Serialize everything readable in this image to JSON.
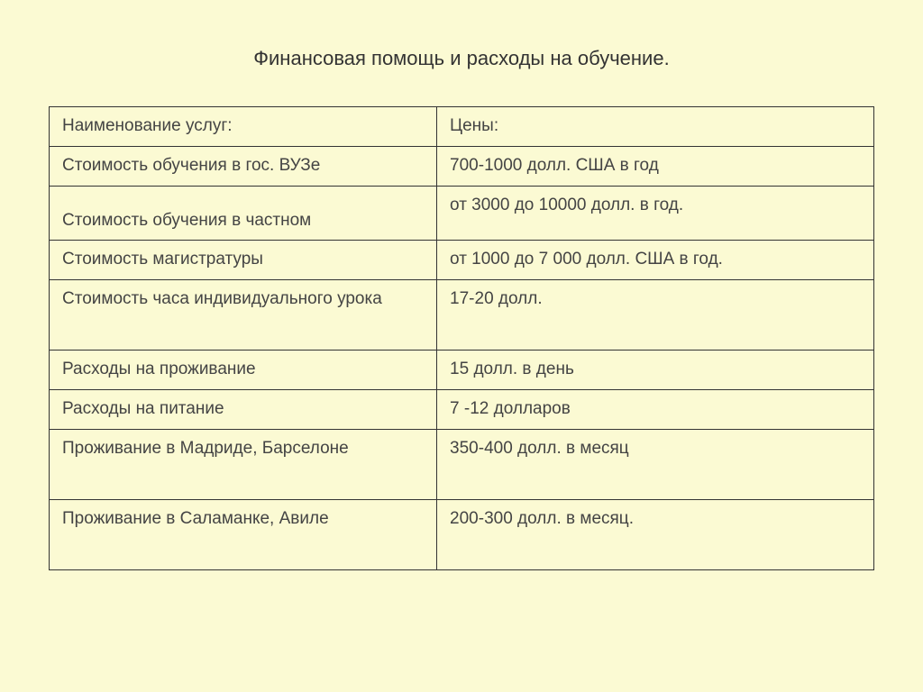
{
  "title": "Финансовая помощь и расходы на обучение.",
  "table": {
    "columns": [
      "Наименование услуг:",
      "Цены:"
    ],
    "rows": [
      {
        "service": "Стоимость обучения в гос. ВУЗе",
        "price": "700-1000 долл. США в год",
        "height": "tight"
      },
      {
        "service": "Стоимость обучения в частном",
        "price": "от 3000 до 10000 долл. в год.",
        "height": "med",
        "service_valign": "bottom",
        "price_valign": "top"
      },
      {
        "service": "Стоимость магистратуры",
        "price": "от 1000 до 7 000 долл. США в год.",
        "height": "tight"
      },
      {
        "service": "Стоимость часа индивидуального урока",
        "price": "17-20 долл.",
        "height": "tall"
      },
      {
        "service": "Расходы на проживание",
        "price": "15 долл. в день",
        "height": "tight"
      },
      {
        "service": "Расходы на питание",
        "price": "7 -12 долларов",
        "height": "tight"
      },
      {
        "service": "Проживание в Мадриде, Барселоне",
        "price": "350-400 долл. в месяц",
        "height": "tall"
      },
      {
        "service": "Проживание в Саламанке, Авиле",
        "price": "200-300 долл. в месяц.",
        "height": "tall"
      }
    ],
    "column_widths": [
      "47%",
      "53%"
    ],
    "border_color": "#333333",
    "font_size": 19,
    "text_color": "#444444"
  },
  "background_color": "#fbfad3"
}
